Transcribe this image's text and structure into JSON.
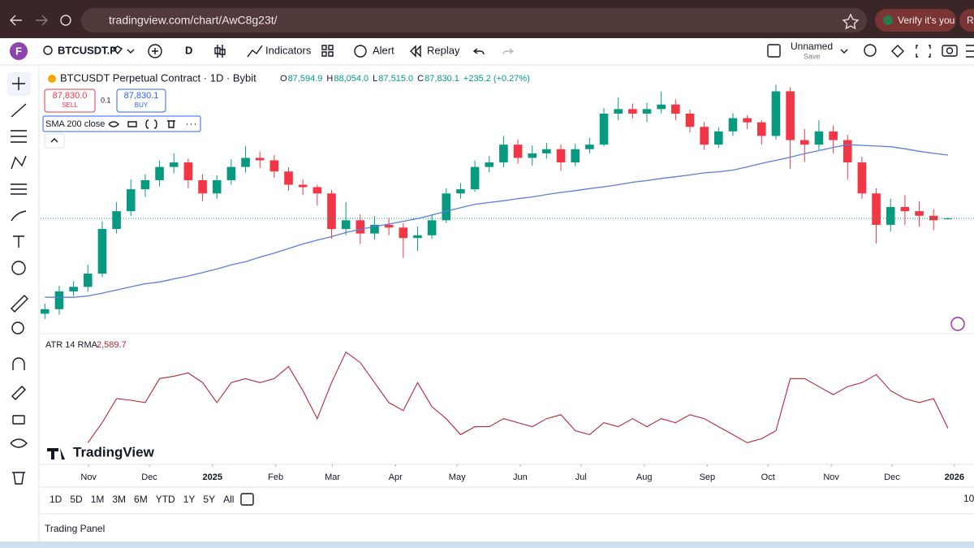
{
  "browser": {
    "url": "tradingview.com/chart/AwC8g23t/",
    "verify": "Verify it's you",
    "cut": "Re"
  },
  "toolbar": {
    "avatar": "F",
    "symbol": "BTCUSDT.P",
    "interval": "D",
    "indicators": "Indicators",
    "alert": "Alert",
    "replay": "Replay",
    "layout": "Unnamed",
    "save": "Save"
  },
  "legend": {
    "title": "BTCUSDT Perpetual Contract · 1D · Bybit",
    "ohlc": [
      {
        "key": "O",
        "label": "87,594.9"
      },
      {
        "key": "H",
        "label": "88,054.0"
      },
      {
        "key": "L",
        "label": "87,515.0"
      },
      {
        "key": "C",
        "label": "87,830.1"
      }
    ],
    "change": "+235.2 (+0.27%)",
    "sell": {
      "price": "87,830.0",
      "label": "SELL"
    },
    "buy": {
      "price": "87,830.1",
      "label": "BUY"
    },
    "spread": "0.1",
    "watermark": "TradingView"
  },
  "chart_data": {
    "type": "candlestick",
    "xlim": [
      -0.3,
      63.8
    ],
    "ylim": [
      55000,
      130000
    ],
    "up_color": "#089981",
    "down_color": "#f23645",
    "candles": {
      "open": [
        60500,
        61800,
        66900,
        68200,
        72000,
        84800,
        89900,
        96200,
        98800,
        102600,
        103900,
        98800,
        95000,
        98800,
        102600,
        105200,
        104500,
        101300,
        97500,
        96800,
        95000,
        84800,
        87300,
        83500,
        86000,
        85200,
        82200,
        83000,
        87300,
        95000,
        96200,
        102600,
        103900,
        109000,
        105200,
        106500,
        107700,
        103900,
        107700,
        109000,
        117900,
        119200,
        117900,
        119200,
        120500,
        117900,
        114100,
        109000,
        112800,
        116600,
        115400,
        111500,
        124300,
        110300,
        109000,
        112800,
        110300,
        103900,
        95000,
        86000,
        91100,
        89900,
        88600,
        87594.9
      ],
      "high": [
        63400,
        68500,
        69800,
        74500,
        87000,
        92500,
        99000,
        100500,
        104500,
        106500,
        105000,
        100500,
        100200,
        104800,
        108500,
        107000,
        106000,
        102500,
        99000,
        97500,
        96000,
        92500,
        89000,
        88500,
        88000,
        86500,
        85500,
        89000,
        96500,
        98000,
        104500,
        105800,
        111500,
        110500,
        108800,
        109500,
        109000,
        109200,
        111000,
        119500,
        122500,
        120800,
        121000,
        124200,
        122000,
        119000,
        115500,
        114000,
        118000,
        117500,
        116000,
        126200,
        125500,
        113500,
        116000,
        114500,
        111800,
        105500,
        96500,
        93500,
        94500,
        92800,
        90500,
        88054.0
      ],
      "low": [
        59000,
        60200,
        65500,
        66800,
        71000,
        83500,
        88500,
        94000,
        97000,
        100800,
        96500,
        92800,
        93500,
        97500,
        101000,
        102300,
        99500,
        95800,
        94500,
        91500,
        82000,
        83000,
        80500,
        81800,
        83000,
        76500,
        78500,
        82000,
        86500,
        93500,
        95500,
        101000,
        102500,
        103500,
        103000,
        105000,
        101500,
        102800,
        106500,
        108500,
        116000,
        116500,
        115500,
        118000,
        116000,
        112500,
        107500,
        108000,
        111500,
        113500,
        109000,
        110500,
        102000,
        104000,
        107500,
        106500,
        99000,
        93500,
        80600,
        84000,
        86000,
        85500,
        84500,
        87515.0
      ],
      "close": [
        61800,
        66900,
        68200,
        72000,
        84800,
        89900,
        96200,
        98800,
        102600,
        103900,
        98800,
        95000,
        98800,
        102600,
        105200,
        104500,
        101300,
        97500,
        96800,
        95000,
        84800,
        87300,
        83500,
        86000,
        85200,
        82200,
        83000,
        87300,
        95000,
        96200,
        102600,
        103900,
        109000,
        105200,
        106500,
        107700,
        103900,
        107700,
        109000,
        117900,
        119200,
        117900,
        119200,
        120500,
        117900,
        114100,
        109000,
        112800,
        116600,
        115400,
        111500,
        124300,
        110300,
        109000,
        112800,
        110300,
        103900,
        95000,
        86000,
        91100,
        89900,
        88600,
        87300,
        87830.1
      ]
    },
    "sma": {
      "name": "SMA 200 close",
      "color": "#5b7fd6",
      "values": [
        65200,
        65200,
        65200,
        65600,
        66400,
        67300,
        68200,
        69100,
        69600,
        70500,
        71300,
        72300,
        73300,
        74500,
        75400,
        76700,
        77900,
        79200,
        80500,
        81600,
        82600,
        83800,
        84700,
        85500,
        86200,
        87000,
        87800,
        88800,
        89900,
        90900,
        91900,
        92400,
        92900,
        93500,
        94000,
        94700,
        95300,
        95800,
        96400,
        96900,
        97500,
        98200,
        98700,
        99300,
        99800,
        100300,
        100900,
        101200,
        101700,
        102600,
        103600,
        104500,
        105400,
        106400,
        107300,
        108200,
        109000,
        108800,
        108600,
        108400,
        107800,
        107100,
        106500,
        106000
      ]
    },
    "atr": {
      "name": "ATR 14 RMA",
      "color": "#b22833",
      "ylim": [
        1500,
        5500
      ],
      "last_label": "2,589.7",
      "values": [
        null,
        null,
        null,
        2133,
        2766,
        3525,
        3475,
        3399,
        4158,
        4234,
        4335,
        4032,
        3399,
        4032,
        4158,
        4032,
        4158,
        4538,
        3778,
        2892,
        4032,
        4994,
        4665,
        4032,
        3399,
        3146,
        4032,
        3272,
        2892,
        2386,
        2639,
        2639,
        2892,
        2766,
        2639,
        2892,
        3019,
        2513,
        2386,
        2766,
        2639,
        2892,
        2639,
        2892,
        2766,
        3019,
        2892,
        2639,
        2386,
        2133,
        2259,
        2513,
        4158,
        4158,
        3905,
        3652,
        3905,
        4032,
        4285,
        3778,
        3525,
        3399,
        3525,
        2589.7
      ]
    },
    "xticks": [
      {
        "value": 3.05,
        "label": "Nov"
      },
      {
        "value": 7.29,
        "label": "Dec"
      },
      {
        "value": 11.69,
        "label": "2025"
      },
      {
        "value": 16.1,
        "label": "Feb"
      },
      {
        "value": 20.06,
        "label": "Mar"
      },
      {
        "value": 24.46,
        "label": "Apr"
      },
      {
        "value": 28.76,
        "label": "May"
      },
      {
        "value": 33.16,
        "label": "Jun"
      },
      {
        "value": 37.4,
        "label": "Jul"
      },
      {
        "value": 41.81,
        "label": "Aug"
      },
      {
        "value": 46.21,
        "label": "Sep"
      },
      {
        "value": 50.45,
        "label": "Oct"
      },
      {
        "value": 54.86,
        "label": "Nov"
      },
      {
        "value": 59.1,
        "label": "Dec"
      },
      {
        "value": 63.45,
        "label": "2026"
      }
    ]
  },
  "ranges": [
    "1D",
    "5D",
    "1M",
    "3M",
    "6M",
    "YTD",
    "1Y",
    "5Y",
    "All"
  ],
  "axis_cut": "10",
  "panel": "Trading Panel"
}
